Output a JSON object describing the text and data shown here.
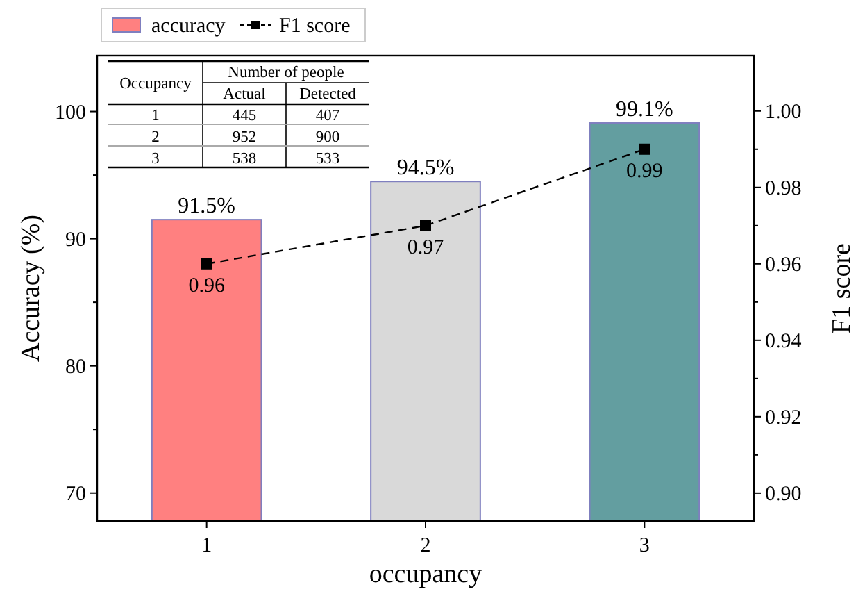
{
  "chart_data": {
    "type": "bar",
    "xlabel": "occupancy",
    "ylabel": "Accuracy (%)",
    "y2label": "F1 score",
    "categories": [
      "1",
      "2",
      "3"
    ],
    "series": [
      {
        "name": "accuracy",
        "colors": [
          "#ff8080",
          "#d9d9d9",
          "#639ea0"
        ],
        "color": "#ff8080",
        "values": [
          91.5,
          94.5,
          99.1
        ],
        "value_labels": [
          "91.5%",
          "94.5%",
          "99.1%"
        ]
      },
      {
        "name": "F1 score",
        "type": "line",
        "axis": "y2",
        "color": "#000000",
        "values": [
          0.96,
          0.97,
          0.99
        ]
      }
    ],
    "ylim": [
      67.8,
      104.4
    ],
    "yticks": [
      70,
      80,
      90,
      100
    ],
    "y2lim": [
      0.8927,
      1.0145
    ],
    "y2ticks": [
      {
        "value": 0.9,
        "label": "0.90"
      },
      {
        "value": 0.92,
        "label": "0.92"
      },
      {
        "value": 0.94,
        "label": "0.94"
      },
      {
        "value": 0.96,
        "label": "0.96"
      },
      {
        "value": 0.98,
        "label": "0.98"
      },
      {
        "value": 1.0,
        "label": "1.00"
      }
    ],
    "data_labels": true,
    "legend": "top left",
    "marker": "square",
    "line_style": "dashed",
    "grid": false,
    "annotations": [
      "Occupancy",
      "Number of people",
      "Actual",
      "Detected",
      "1",
      "445",
      "407",
      "2",
      "952",
      "900",
      "3",
      "538",
      "533"
    ]
  }
}
